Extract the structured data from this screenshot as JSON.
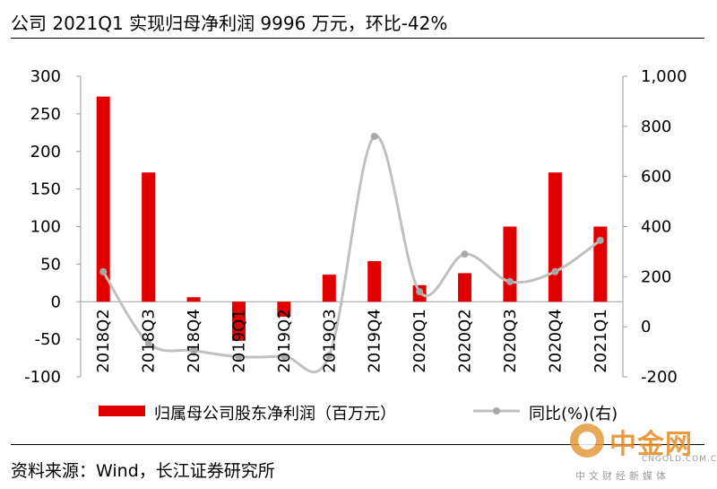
{
  "header": {
    "title": "公司 2021Q1 实现归母净利润 9996 万元，环比-42%"
  },
  "footer": {
    "source": "资料来源：Wind，长江证券研究所"
  },
  "watermark": {
    "brand": "中金网",
    "url": "CNGOLD.COM.CN",
    "tagline": "中文财经新媒体"
  },
  "colors": {
    "bar": "#e00000",
    "line": "#c0c0c0",
    "marker": "#a8a8a8"
  },
  "chart_data": {
    "type": "bar",
    "categories": [
      "2018Q2",
      "2018Q3",
      "2018Q4",
      "2019Q1",
      "2019Q2",
      "2019Q3",
      "2019Q4",
      "2020Q1",
      "2020Q2",
      "2020Q3",
      "2020Q4",
      "2021Q1"
    ],
    "series": [
      {
        "name": "归属母公司股东净利润（百万元）",
        "type": "bar",
        "axis": "left",
        "values": [
          273,
          172,
          6,
          -52,
          -20,
          36,
          54,
          22,
          38,
          100,
          172,
          100
        ]
      },
      {
        "name": "同比(%)(右)",
        "type": "line",
        "axis": "right",
        "values": [
          220,
          -65,
          -95,
          -120,
          -118,
          -115,
          760,
          140,
          290,
          180,
          220,
          345
        ]
      }
    ],
    "y_left": {
      "min": -100,
      "max": 300,
      "ticks": [
        "-100",
        "-50",
        "0",
        "50",
        "100",
        "150",
        "200",
        "250",
        "300"
      ]
    },
    "y_right": {
      "min": -200,
      "max": 1000,
      "ticks": [
        "-200",
        "0",
        "200",
        "400",
        "600",
        "800",
        "1,000"
      ]
    },
    "legend": {
      "position": "bottom"
    }
  }
}
